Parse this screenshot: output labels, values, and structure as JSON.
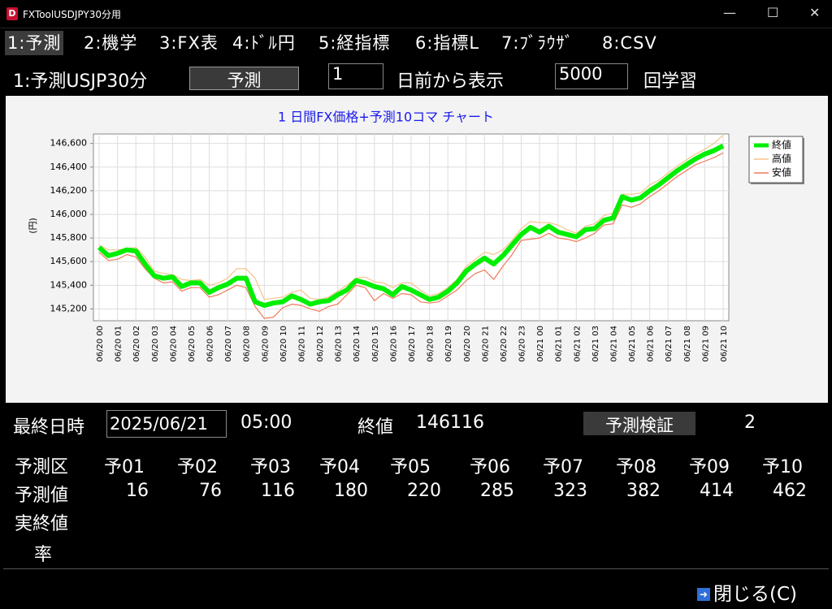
{
  "window": {
    "title": "FXToolUSDJPY30分用"
  },
  "tabs": [
    "1:予測",
    "2:機学",
    "3:FX表",
    "4:ﾄﾞﾙ円",
    "5:経指標",
    "6:指標L",
    "7:ﾌﾞﾗｳｻﾞ",
    "8:CSV"
  ],
  "toolbar": {
    "label": "1:予測USJP30分",
    "button": "予測",
    "days_input": "1",
    "days_label": "日前から表示",
    "count_input": "5000",
    "count_label": "回学習"
  },
  "chart_data": {
    "type": "line",
    "title": "1 日間FX価格+予測10コマ チャート",
    "y_label": "(円)",
    "grid": true,
    "legend": "top-right",
    "categories": [
      "06/20 00",
      null,
      "06/20 01",
      null,
      "06/20 02",
      null,
      "06/20 03",
      null,
      "06/20 04",
      null,
      "06/20 05",
      null,
      "06/20 06",
      null,
      "06/20 07",
      null,
      "06/20 08",
      null,
      "06/20 09",
      null,
      "06/20 10",
      null,
      "06/20 11",
      null,
      "06/20 12",
      null,
      "06/20 13",
      null,
      "06/20 14",
      null,
      "06/20 15",
      null,
      "06/20 16",
      null,
      "06/20 17",
      null,
      "06/20 18",
      null,
      "06/20 19",
      null,
      "06/20 20",
      null,
      "06/20 21",
      null,
      "06/20 22",
      null,
      "06/20 23",
      null,
      "06/21 00",
      null,
      "06/21 01",
      null,
      "06/21 02",
      null,
      "06/21 03",
      null,
      "06/21 04",
      null,
      "06/21 05",
      null,
      "06/21 06",
      null,
      "06/21 07",
      null,
      "06/21 08",
      null,
      "06/21 09",
      null,
      "06/21 10"
    ],
    "series": [
      {
        "name": "終値",
        "color": "#00ee00",
        "values": [
          145720,
          145650,
          145670,
          145700,
          145690,
          145580,
          145480,
          145460,
          145470,
          145390,
          145420,
          145420,
          145340,
          145380,
          145410,
          145460,
          145460,
          145260,
          145230,
          145250,
          145260,
          145310,
          145280,
          145240,
          145260,
          145270,
          145320,
          145360,
          145440,
          145420,
          145390,
          145370,
          145320,
          145390,
          145360,
          145320,
          145280,
          145300,
          145350,
          145420,
          145520,
          145580,
          145630,
          145580,
          145650,
          145740,
          145830,
          145890,
          145850,
          145900,
          145850,
          145830,
          145810,
          145870,
          145880,
          145950,
          145970,
          146150,
          146120,
          146140,
          146200,
          146250,
          146310,
          146370,
          146420,
          146470,
          146510,
          146540,
          146580
        ]
      },
      {
        "name": "高値",
        "color": "#f5c48a",
        "values": [
          145740,
          145700,
          145700,
          145710,
          145720,
          145640,
          145520,
          145500,
          145490,
          145450,
          145440,
          145450,
          145400,
          145420,
          145460,
          145540,
          145540,
          145460,
          145280,
          145290,
          145300,
          145340,
          145360,
          145290,
          145280,
          145300,
          145350,
          145400,
          145460,
          145470,
          145430,
          145420,
          145380,
          145420,
          145420,
          145360,
          145310,
          145330,
          145380,
          145450,
          145560,
          145620,
          145680,
          145660,
          145700,
          145780,
          145880,
          145940,
          145930,
          145930,
          145910,
          145870,
          145840,
          145900,
          145920,
          145990,
          146010,
          146170,
          146170,
          146180,
          146250,
          146290,
          146350,
          146410,
          146460,
          146510,
          146550,
          146600,
          146670
        ]
      },
      {
        "name": "安値",
        "color": "#f07a5a",
        "values": [
          145680,
          145610,
          145620,
          145660,
          145640,
          145540,
          145460,
          145420,
          145430,
          145350,
          145380,
          145380,
          145300,
          145320,
          145360,
          145400,
          145380,
          145220,
          145120,
          145130,
          145210,
          145240,
          145230,
          145200,
          145180,
          145220,
          145240,
          145320,
          145400,
          145380,
          145270,
          145330,
          145290,
          145330,
          145320,
          145260,
          145250,
          145260,
          145310,
          145360,
          145440,
          145500,
          145530,
          145450,
          145560,
          145660,
          145780,
          145790,
          145800,
          145840,
          145800,
          145790,
          145770,
          145800,
          145840,
          145910,
          145920,
          146080,
          146060,
          146090,
          146150,
          146200,
          146260,
          146320,
          146370,
          146420,
          146450,
          146480,
          146520
        ]
      }
    ],
    "ylim": [
      145100,
      146680
    ],
    "yticks": [
      {
        "value": 145200,
        "label": "145,200"
      },
      {
        "value": 145400,
        "label": "145,400"
      },
      {
        "value": 145600,
        "label": "145,600"
      },
      {
        "value": 145800,
        "label": "145,800"
      },
      {
        "value": 146000,
        "label": "146,000"
      },
      {
        "value": 146200,
        "label": "146,200"
      },
      {
        "value": 146400,
        "label": "146,400"
      },
      {
        "value": 146600,
        "label": "146,600"
      }
    ]
  },
  "summary": {
    "last_label": "最終日時",
    "date": "2025/06/21",
    "time": "05:00",
    "close_label": "終値",
    "close_value": "146116",
    "verify_button": "予測検証",
    "verify_value": "2"
  },
  "table": {
    "rows": [
      [
        "予測区",
        "予01",
        "予02",
        "予03",
        "予04",
        "予05",
        "予06",
        "予07",
        "予08",
        "予09",
        "予10"
      ],
      [
        "予測値",
        "16",
        "76",
        "116",
        "180",
        "220",
        "285",
        "323",
        "382",
        "414",
        "462"
      ],
      [
        "実終値"
      ],
      [
        "率"
      ]
    ]
  },
  "footer": {
    "close_button": "閉じる(C)"
  }
}
